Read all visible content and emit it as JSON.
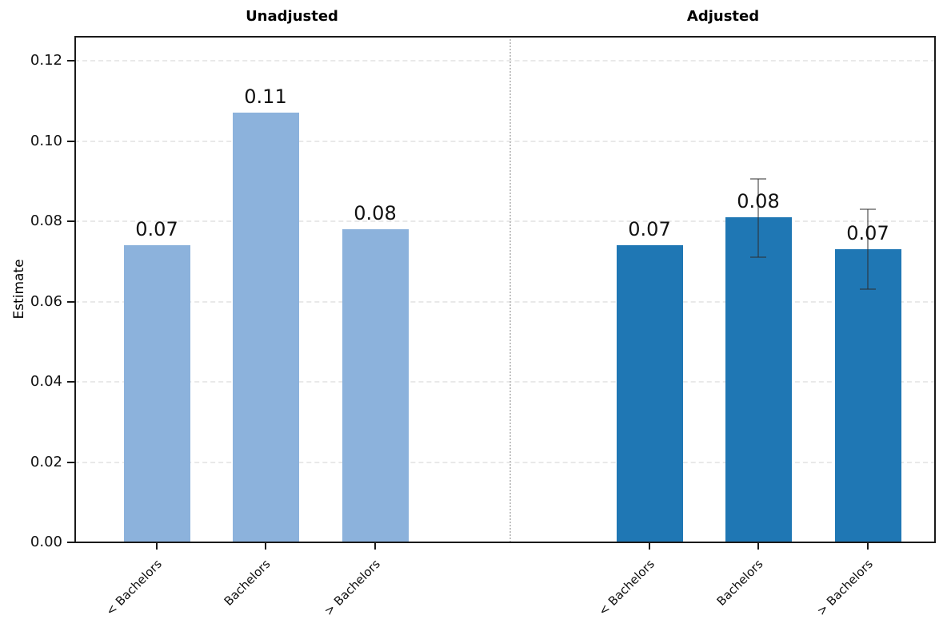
{
  "figure": {
    "background": "#ffffff",
    "frame_color": "#1a1a1a",
    "grid_color": "#e9e9e9",
    "separator_color": "#c3c3c3",
    "errorbar_color": "rgba(45,45,45,0.5)"
  },
  "chart_data": {
    "type": "bar",
    "title": "",
    "ylabel": "Estimate",
    "xlabel": "",
    "ylim": [
      0,
      0.126
    ],
    "grid": true,
    "grid_style": "horizontal dashed",
    "yticks": [
      "0.00",
      "0.02",
      "0.04",
      "0.06",
      "0.08",
      "0.10",
      "0.12"
    ],
    "categories": [
      "< Bachelors",
      "Bachelors",
      "> Bachelors"
    ],
    "panels": [
      {
        "title": "Unadjusted",
        "bar_color": "#8cb2dc",
        "bars": [
          {
            "category": "< Bachelors",
            "value": 0.074,
            "label": "0.07",
            "error_low": null,
            "error_high": null
          },
          {
            "category": "Bachelors",
            "value": 0.107,
            "label": "0.11",
            "error_low": null,
            "error_high": null
          },
          {
            "category": "> Bachelors",
            "value": 0.078,
            "label": "0.08",
            "error_low": null,
            "error_high": null
          }
        ]
      },
      {
        "title": "Adjusted",
        "bar_color": "#1f77b4",
        "bars": [
          {
            "category": "< Bachelors",
            "value": 0.074,
            "label": "0.07",
            "error_low": null,
            "error_high": null
          },
          {
            "category": "Bachelors",
            "value": 0.081,
            "label": "0.08",
            "error_low": 0.071,
            "error_high": 0.0905
          },
          {
            "category": "> Bachelors",
            "value": 0.073,
            "label": "0.07",
            "error_low": 0.063,
            "error_high": 0.083
          }
        ]
      }
    ]
  }
}
